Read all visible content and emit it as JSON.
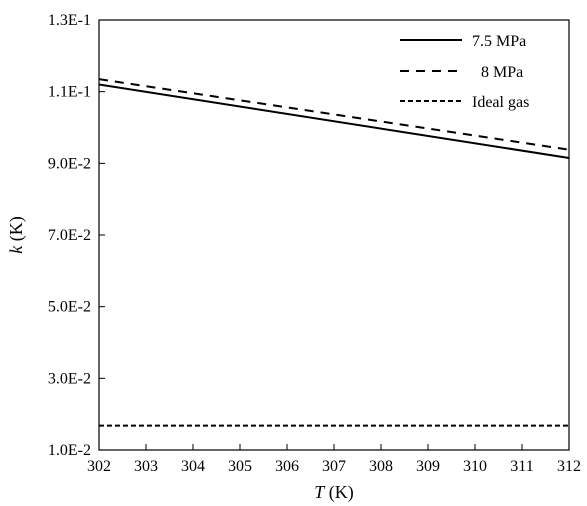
{
  "chart_data": {
    "type": "line",
    "xlabel": {
      "symbol": "T",
      "unit": "(K)"
    },
    "ylabel": {
      "symbol": "k",
      "unit": "(K)"
    },
    "xlim": [
      302,
      312
    ],
    "ylim": [
      0.01,
      0.13
    ],
    "x_ticks": [
      302,
      303,
      304,
      305,
      306,
      307,
      308,
      309,
      310,
      311,
      312
    ],
    "x_tick_labels": [
      "302",
      "303",
      "304",
      "305",
      "306",
      "307",
      "308",
      "309",
      "310",
      "311",
      "312"
    ],
    "y_ticks": [
      0.01,
      0.03,
      0.05,
      0.07,
      0.09,
      0.11,
      0.13
    ],
    "y_tick_labels": [
      "1.0E-2",
      "3.0E-2",
      "5.0E-2",
      "7.0E-2",
      "9.0E-2",
      "1.1E-1",
      "1.3E-1"
    ],
    "grid": false,
    "legend_position": "top-right",
    "series": [
      {
        "name": "7.5 MPa",
        "style": "solid",
        "color": "#000000",
        "x": [
          302,
          312
        ],
        "y": [
          0.112,
          0.0915
        ]
      },
      {
        "name": "8 MPa",
        "style": "dashed",
        "color": "#000000",
        "x": [
          302,
          312
        ],
        "y": [
          0.1135,
          0.0938
        ]
      },
      {
        "name": "Ideal gas",
        "style": "short-dashed",
        "color": "#000000",
        "x": [
          302,
          312
        ],
        "y": [
          0.0168,
          0.0168
        ]
      }
    ]
  }
}
